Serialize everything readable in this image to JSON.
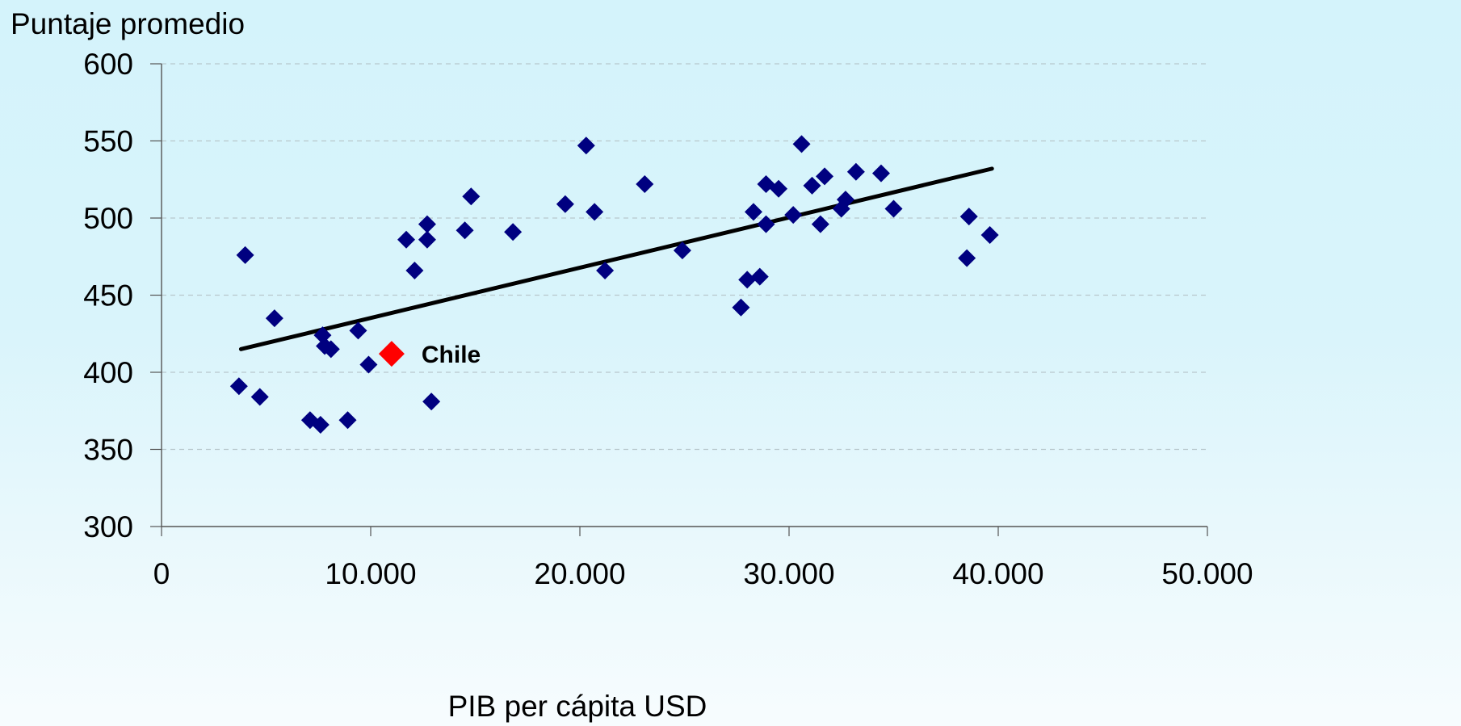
{
  "chart_data": {
    "type": "scatter",
    "ylabel": "Puntaje promedio",
    "xlabel": "PIB per cápita USD",
    "xlim": [
      0,
      50000
    ],
    "ylim": [
      300,
      600
    ],
    "x_ticks": [
      "0",
      "10.000",
      "20.000",
      "30.000",
      "40.000",
      "50.000"
    ],
    "y_ticks": [
      "300",
      "350",
      "400",
      "450",
      "500",
      "550",
      "600"
    ],
    "grid": "horizontal dashed",
    "points": [
      [
        3700,
        391
      ],
      [
        4000,
        476
      ],
      [
        4700,
        384
      ],
      [
        5400,
        435
      ],
      [
        7100,
        369
      ],
      [
        7600,
        366
      ],
      [
        7700,
        424
      ],
      [
        7800,
        417
      ],
      [
        8100,
        415
      ],
      [
        8900,
        369
      ],
      [
        9400,
        427
      ],
      [
        9900,
        405
      ],
      [
        11700,
        486
      ],
      [
        12100,
        466
      ],
      [
        12700,
        496
      ],
      [
        12700,
        486
      ],
      [
        12900,
        381
      ],
      [
        14500,
        492
      ],
      [
        14800,
        514
      ],
      [
        16800,
        491
      ],
      [
        19300,
        509
      ],
      [
        20300,
        547
      ],
      [
        20700,
        504
      ],
      [
        21200,
        466
      ],
      [
        23100,
        522
      ],
      [
        24900,
        479
      ],
      [
        27700,
        442
      ],
      [
        28000,
        460
      ],
      [
        28300,
        504
      ],
      [
        28600,
        462
      ],
      [
        28900,
        496
      ],
      [
        28900,
        522
      ],
      [
        29500,
        519
      ],
      [
        30200,
        502
      ],
      [
        30600,
        548
      ],
      [
        31100,
        521
      ],
      [
        31500,
        496
      ],
      [
        31700,
        527
      ],
      [
        32500,
        506
      ],
      [
        32700,
        512
      ],
      [
        33200,
        530
      ],
      [
        34400,
        529
      ],
      [
        35000,
        506
      ],
      [
        38500,
        474
      ],
      [
        38600,
        501
      ],
      [
        39600,
        489
      ]
    ],
    "highlight": {
      "label": "Chile",
      "x": 11000,
      "y": 412,
      "color": "#ff0000"
    },
    "trendline": {
      "x": [
        3800,
        39700
      ],
      "y": [
        415,
        532
      ]
    },
    "colors": {
      "points": "#000080",
      "trendline": "#000000",
      "highlight": "#ff0000"
    }
  }
}
